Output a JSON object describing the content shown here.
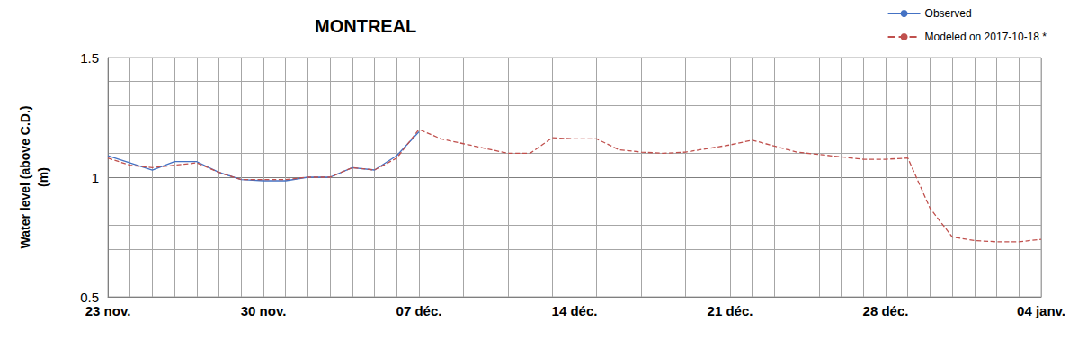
{
  "chart_data": {
    "type": "line",
    "title": "MONTREAL",
    "y_label": "Water level (above C.D.)\n(m)",
    "categories": [
      "23 nov.",
      null,
      null,
      null,
      null,
      null,
      null,
      "30 nov.",
      null,
      null,
      null,
      null,
      null,
      null,
      "07 déc.",
      null,
      null,
      null,
      null,
      null,
      null,
      "14 déc.",
      null,
      null,
      null,
      null,
      null,
      null,
      "21 déc.",
      null,
      null,
      null,
      null,
      null,
      null,
      "28 déc.",
      null,
      null,
      null,
      null,
      null,
      null,
      "04 janv."
    ],
    "series": [
      {
        "name": "Observed",
        "color": "#4472c4",
        "line_style": "solid",
        "values": [
          1.09,
          1.06,
          1.03,
          1.065,
          1.065,
          1.02,
          0.99,
          0.985,
          0.985,
          1.0,
          1.0,
          1.04,
          1.03,
          1.09,
          1.19,
          null,
          null,
          null,
          null,
          null,
          null,
          null,
          null,
          null,
          null,
          null,
          null,
          null,
          null,
          null,
          null,
          null,
          null,
          null,
          null,
          null,
          null,
          null,
          null,
          null,
          null,
          null,
          null
        ]
      },
      {
        "name": "Modeled on 2017-10-18 *",
        "color": "#c0504d",
        "line_style": "dashed",
        "values": [
          1.08,
          1.05,
          1.04,
          1.05,
          1.06,
          1.02,
          0.99,
          0.99,
          0.99,
          1.0,
          1.0,
          1.04,
          1.03,
          1.08,
          1.2,
          1.16,
          1.14,
          1.12,
          1.1,
          1.1,
          1.165,
          1.16,
          1.16,
          1.115,
          1.105,
          1.1,
          1.105,
          1.12,
          1.135,
          1.155,
          1.13,
          1.105,
          1.095,
          1.085,
          1.075,
          1.075,
          1.08,
          0.87,
          0.75,
          0.735,
          0.73,
          0.73,
          0.74
        ]
      }
    ],
    "ylim": [
      0.5,
      1.5
    ],
    "yticks": [
      0.5,
      1,
      1.5
    ],
    "grid": true,
    "legend": "top-right"
  }
}
